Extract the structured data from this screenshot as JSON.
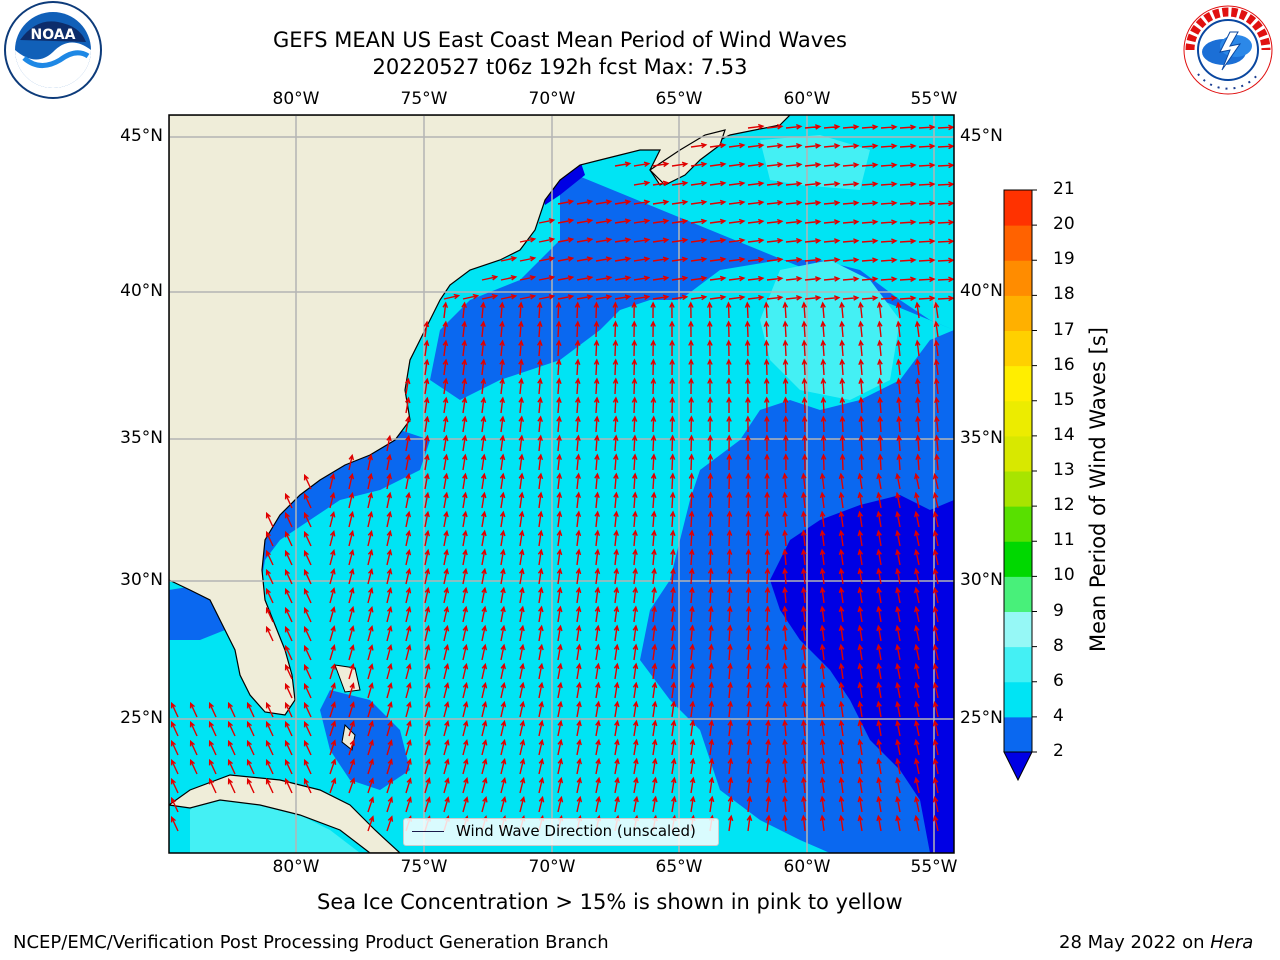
{
  "titles": {
    "line1": "GEFS MEAN US East Coast Mean Period of Wind Waves",
    "line2": "20220527 t06z 192h fcst   Max: 7.53"
  },
  "axes": {
    "lon_labels": [
      "80°W",
      "75°W",
      "70°W",
      "65°W",
      "60°W",
      "55°W"
    ],
    "lat_labels": [
      "45°N",
      "40°N",
      "35°N",
      "30°N",
      "25°N"
    ]
  },
  "colorbar": {
    "label": "Mean Period of Wind Waves [s]",
    "ticks": [
      "2",
      "4",
      "6",
      "8",
      "9",
      "10",
      "11",
      "12",
      "13",
      "14",
      "15",
      "16",
      "17",
      "18",
      "19",
      "20",
      "21"
    ],
    "colors": [
      "#0a68f0",
      "#00e4f4",
      "#44f0f4",
      "#96f8f6",
      "#48f07a",
      "#00d800",
      "#58e000",
      "#a8e400",
      "#d8e800",
      "#ecec00",
      "#ffee00",
      "#ffd000",
      "#ffb000",
      "#ff8c00",
      "#ff6200",
      "#ff3200",
      "#f00000"
    ],
    "extend_color": "#0000e4"
  },
  "legend": {
    "label": "Wind Wave Direction (unscaled)"
  },
  "note": "Sea Ice Concentration > 15% is shown in pink to yellow",
  "footer": {
    "left": "NCEP/EMC/Verification Post Processing Product Generation Branch",
    "right_date": "28 May 2022 on ",
    "right_host": "Hera"
  },
  "logos": {
    "noaa_text": "NOAA",
    "nws_text": "NATIONAL WEATHER SERVICE"
  },
  "map_colors": {
    "land": "#efedd9",
    "ocean_2_4": "#0a68f0",
    "ocean_4_6": "#00e4f4",
    "ocean_6_8": "#44f0f4",
    "ocean_below_2": "#0000e4",
    "arrow": "#e00000",
    "grid": "#b4b4b4"
  }
}
